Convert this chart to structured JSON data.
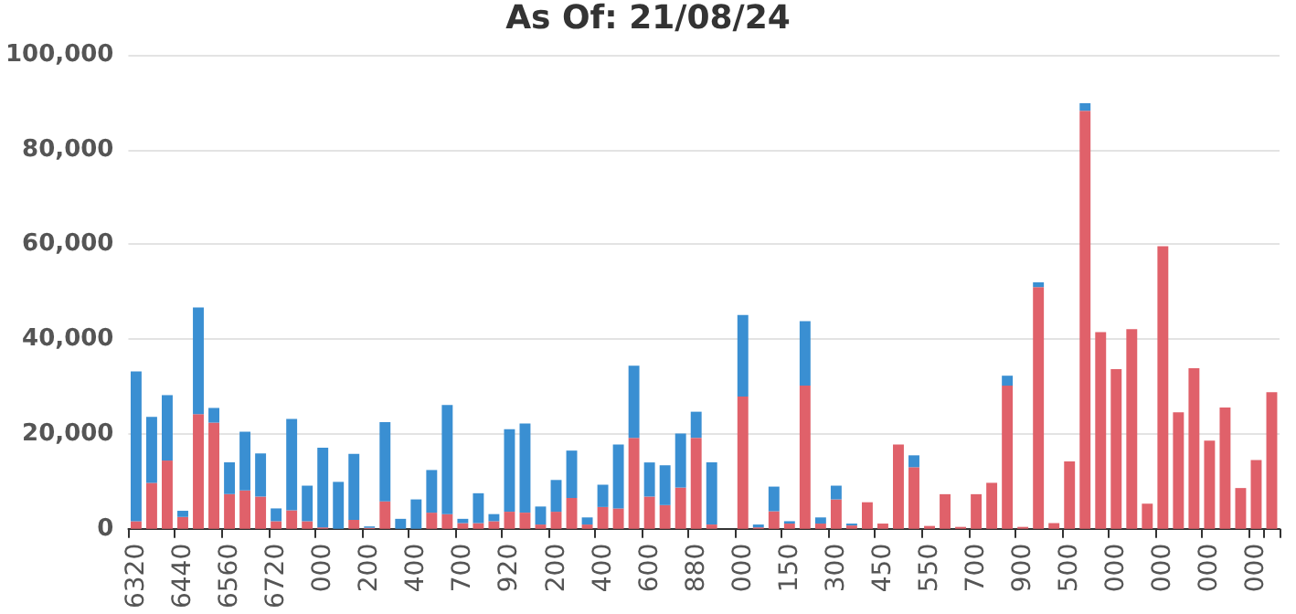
{
  "chart_data": {
    "type": "bar",
    "title": "As Of: 21/08/24",
    "stacked": true,
    "grid": "y",
    "categories": [
      "6320",
      null,
      null,
      "6440",
      null,
      null,
      "6560",
      null,
      null,
      "6720",
      null,
      null,
      "000",
      null,
      null,
      "200",
      null,
      null,
      "400",
      null,
      null,
      "700",
      null,
      null,
      "920",
      null,
      null,
      "200",
      null,
      null,
      "400",
      null,
      null,
      "600",
      null,
      null,
      "880",
      null,
      null,
      "000",
      null,
      null,
      "150",
      null,
      null,
      "300",
      null,
      null,
      "450",
      null,
      null,
      "550",
      null,
      null,
      "700",
      null,
      null,
      "900",
      null,
      null,
      "500",
      null,
      null,
      "000",
      null,
      null,
      "000",
      null,
      null,
      "000",
      null,
      null,
      "000",
      null
    ],
    "ylim": [
      0,
      100000
    ],
    "yticks": [
      0,
      {
        "value": 20000,
        "label": "20,000"
      },
      {
        "value": 40000,
        "label": "40,000"
      },
      {
        "value": 60000,
        "label": "60,000"
      },
      {
        "value": 80000,
        "label": "80,000"
      },
      {
        "value": 100000,
        "label": "100,000"
      }
    ],
    "series": [
      {
        "color": "#e0616a",
        "values": [
          1600,
          9700,
          14400,
          2500,
          24200,
          22400,
          7300,
          8100,
          6800,
          1600,
          3900,
          1600,
          300,
          0,
          1900,
          200,
          5800,
          0,
          0,
          3400,
          3100,
          1200,
          1200,
          1600,
          3600,
          3400,
          900,
          3600,
          6500,
          900,
          4600,
          4300,
          19200,
          6800,
          5000,
          8700,
          19200,
          900,
          0,
          27900,
          300,
          3700,
          1100,
          30200,
          1100,
          6200,
          700,
          5600,
          1100,
          17800,
          13000,
          600,
          7300,
          400,
          7300,
          9700,
          30200,
          400,
          51000,
          1200,
          14200,
          88200,
          41500,
          33700,
          42100,
          5300,
          59600,
          24600,
          33900,
          18600,
          25600,
          8600,
          14500,
          28800
        ]
      },
      {
        "color": "#3a8fd2",
        "values": [
          31600,
          13900,
          13800,
          1300,
          22500,
          3100,
          6700,
          12400,
          9100,
          2700,
          19300,
          7500,
          16800,
          9900,
          13900,
          300,
          16700,
          2100,
          6200,
          9000,
          23000,
          900,
          6300,
          1500,
          17400,
          18800,
          3800,
          6700,
          10000,
          1500,
          4700,
          13500,
          15200,
          7200,
          8400,
          11400,
          5500,
          13100,
          0,
          17200,
          600,
          5200,
          500,
          13600,
          1300,
          2900,
          400,
          0,
          0,
          0,
          2500,
          0,
          0,
          0,
          0,
          0,
          2100,
          0,
          1000,
          0,
          0,
          1600,
          0,
          0,
          0,
          0,
          0,
          0,
          0,
          0,
          0,
          0,
          0,
          0
        ]
      }
    ]
  }
}
